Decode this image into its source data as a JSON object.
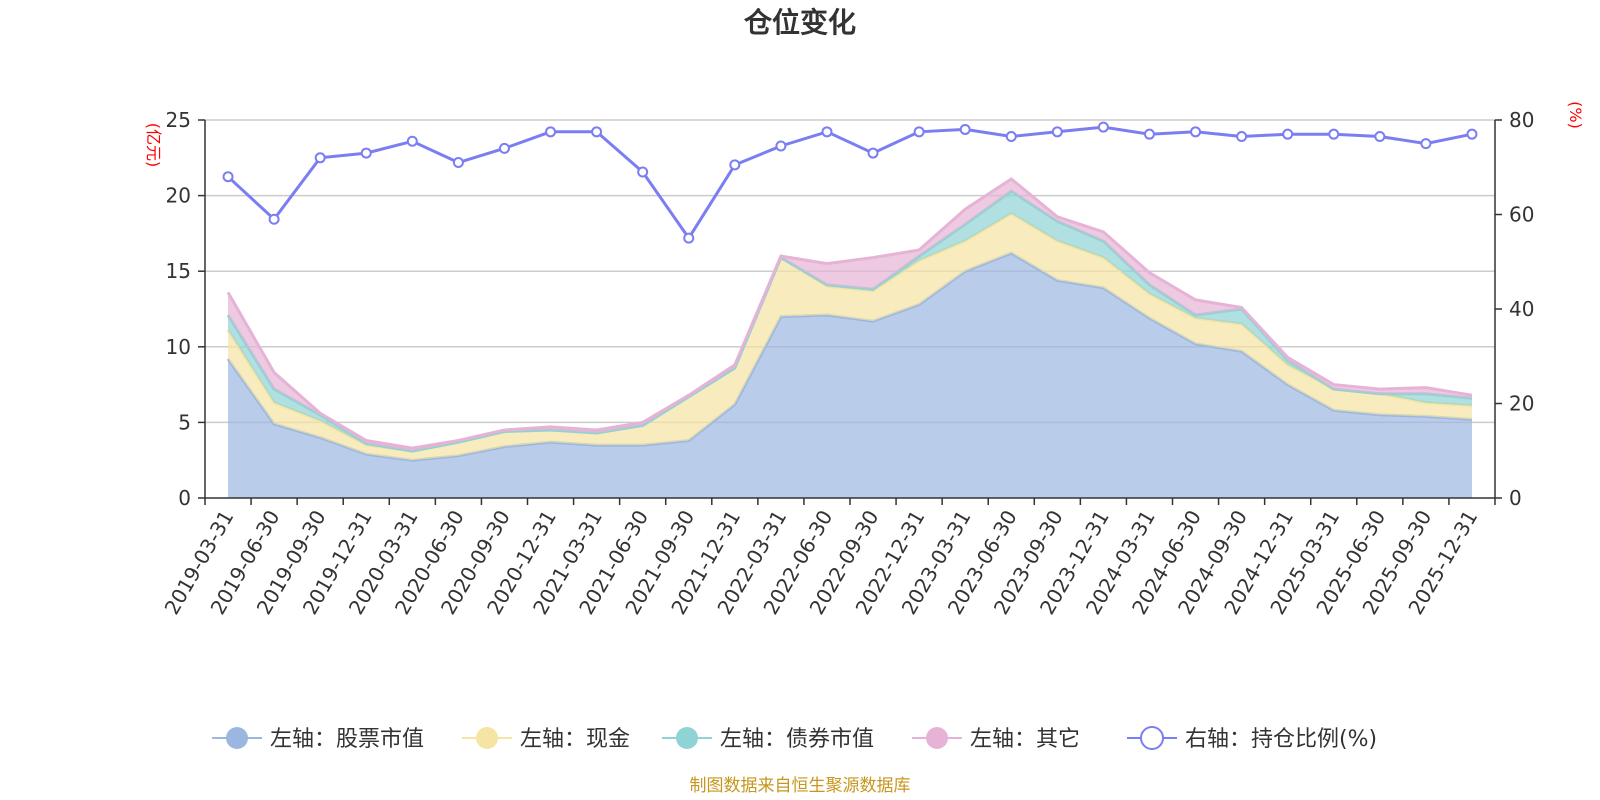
{
  "chart_data": {
    "type": "area",
    "title": "仓位变化",
    "left_axis_unit": "(亿元)",
    "right_axis_unit": "(%)",
    "left_ylim": [
      0,
      25
    ],
    "left_ticks": [
      "0",
      "5",
      "10",
      "15",
      "20",
      "25"
    ],
    "right_ylim": [
      0,
      80
    ],
    "right_ticks": [
      "0",
      "20",
      "40",
      "60",
      "80"
    ],
    "categories": [
      "2019-03-31",
      "2019-06-30",
      "2019-09-30",
      "2019-12-31",
      "2020-03-31",
      "2020-06-30",
      "2020-09-30",
      "2020-12-31",
      "2021-03-31",
      "2021-06-30",
      "2021-09-30",
      "2021-12-31",
      "2022-03-31",
      "2022-06-30",
      "2022-09-30",
      "2022-12-31",
      "2023-03-31",
      "2023-06-30",
      "2023-09-30",
      "2023-12-31",
      "2024-03-31",
      "2024-06-30",
      "2024-09-30",
      "2024-12-31",
      "2025-03-31",
      "2025-06-30",
      "2025-09-30",
      "2025-12-31"
    ],
    "series": [
      {
        "name": "左轴：股票市值",
        "axis": "left",
        "color": "#9bb7e0",
        "values": [
          9.2,
          4.9,
          4.0,
          2.9,
          2.5,
          2.8,
          3.4,
          3.7,
          3.5,
          3.5,
          3.8,
          6.2,
          12.0,
          12.1,
          11.7,
          12.8,
          15.0,
          16.2,
          14.4,
          13.9,
          11.9,
          10.2,
          9.7,
          7.5,
          5.8,
          5.5,
          5.4,
          5.2
        ]
      },
      {
        "name": "左轴：现金",
        "axis": "left",
        "color": "#f5e4a3",
        "values": [
          1.9,
          1.4,
          1.1,
          0.6,
          0.6,
          0.9,
          1.0,
          0.8,
          0.8,
          1.3,
          2.9,
          2.4,
          3.9,
          1.9,
          2.0,
          2.9,
          2.0,
          2.6,
          2.6,
          2.0,
          1.6,
          1.7,
          1.8,
          1.3,
          1.4,
          1.4,
          0.9,
          0.9
        ]
      },
      {
        "name": "左轴：债券市值",
        "axis": "left",
        "color": "#8fd3d4",
        "values": [
          1.0,
          0.9,
          0.4,
          0.1,
          0.0,
          0.0,
          0.0,
          0.0,
          0.0,
          0.0,
          0.0,
          0.0,
          0.0,
          0.1,
          0.1,
          0.3,
          1.1,
          1.5,
          1.3,
          1.1,
          0.6,
          0.2,
          1.0,
          0.3,
          0.0,
          0.0,
          0.6,
          0.5
        ]
      },
      {
        "name": "左轴：其它",
        "axis": "left",
        "color": "#e6b3d6",
        "values": [
          1.5,
          1.1,
          0.1,
          0.2,
          0.2,
          0.1,
          0.1,
          0.2,
          0.2,
          0.2,
          0.1,
          0.2,
          0.1,
          1.4,
          2.1,
          0.4,
          1.0,
          0.8,
          0.3,
          0.6,
          0.8,
          1.0,
          0.1,
          0.2,
          0.3,
          0.3,
          0.4,
          0.2
        ]
      },
      {
        "name": "右轴：持仓比例(%)",
        "axis": "right",
        "color": "#7b7ef2",
        "values": [
          68,
          59,
          72,
          73,
          75.5,
          71,
          74,
          77.5,
          77.5,
          69,
          55,
          70.5,
          74.5,
          77.5,
          73,
          77.5,
          78,
          76.5,
          77.5,
          78.5,
          77,
          77.5,
          76.5,
          77,
          77,
          76.5,
          75,
          77
        ]
      }
    ]
  },
  "legend": [
    {
      "label": "左轴：股票市值",
      "color": "#9bb7e0",
      "style": "filled"
    },
    {
      "label": "左轴：现金",
      "color": "#f5e4a3",
      "style": "filled"
    },
    {
      "label": "左轴：债券市值",
      "color": "#8fd3d4",
      "style": "filled"
    },
    {
      "label": "左轴：其它",
      "color": "#e6b3d6",
      "style": "filled"
    },
    {
      "label": "右轴：持仓比例(%)",
      "color": "#7b7ef2",
      "style": "hollow"
    }
  ],
  "source": "制图数据来自恒生聚源数据库"
}
